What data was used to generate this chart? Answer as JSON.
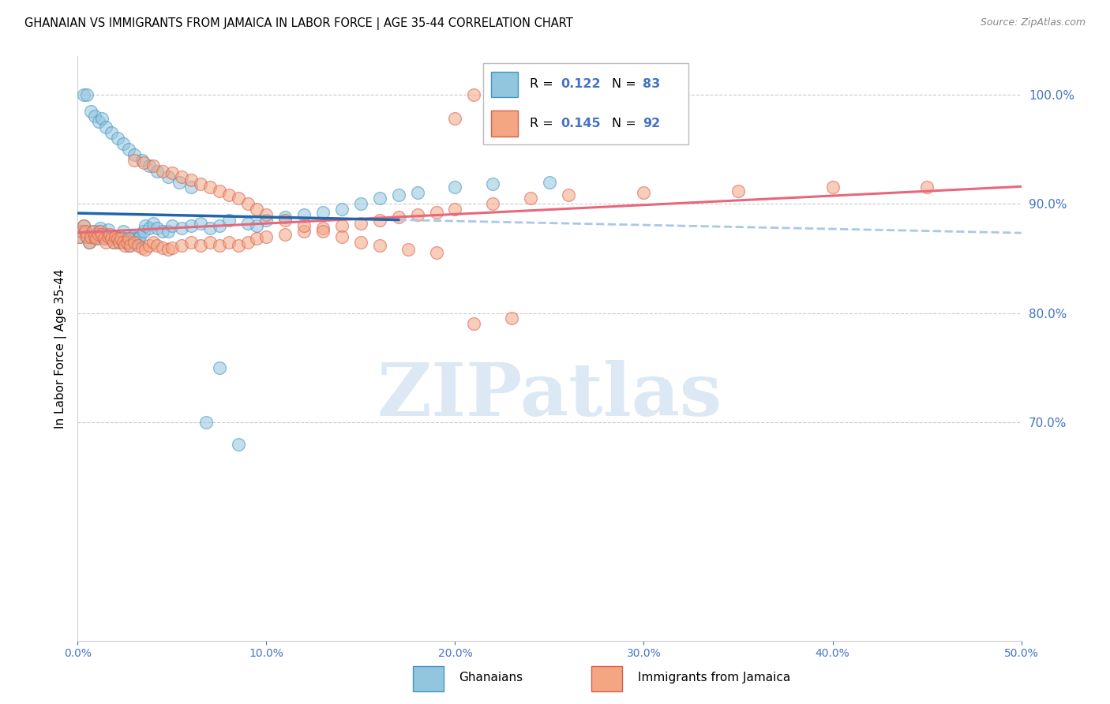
{
  "title": "GHANAIAN VS IMMIGRANTS FROM JAMAICA IN LABOR FORCE | AGE 35-44 CORRELATION CHART",
  "source": "Source: ZipAtlas.com",
  "ylabel": "In Labor Force | Age 35-44",
  "xlim": [
    0.0,
    0.5
  ],
  "ylim": [
    0.5,
    1.035
  ],
  "xtick_labels": [
    "0.0%",
    "10.0%",
    "20.0%",
    "30.0%",
    "40.0%",
    "50.0%"
  ],
  "ytick_labels_right": [
    "70.0%",
    "80.0%",
    "90.0%",
    "100.0%"
  ],
  "blue_fill": "#92c5de",
  "blue_edge": "#4393c3",
  "pink_fill": "#f4a582",
  "pink_edge": "#d6604d",
  "blue_trend_color": "#2166ac",
  "pink_trend_color": "#e8677a",
  "dashed_ext_color": "#a8c8e8",
  "tick_label_color": "#4472c4",
  "legend_label_blue": "Ghanaians",
  "legend_label_pink": "Immigrants from Jamaica",
  "watermark": "ZIPatlas",
  "watermark_color": "#dce9f5",
  "blue_scatter_x": [
    0.001,
    0.002,
    0.003,
    0.004,
    0.005,
    0.006,
    0.007,
    0.008,
    0.009,
    0.01,
    0.01,
    0.011,
    0.012,
    0.013,
    0.014,
    0.015,
    0.016,
    0.017,
    0.018,
    0.019,
    0.02,
    0.021,
    0.022,
    0.023,
    0.024,
    0.025,
    0.026,
    0.027,
    0.028,
    0.029,
    0.03,
    0.031,
    0.032,
    0.033,
    0.035,
    0.036,
    0.038,
    0.04,
    0.042,
    0.045,
    0.048,
    0.05,
    0.055,
    0.06,
    0.065,
    0.07,
    0.075,
    0.08,
    0.09,
    0.095,
    0.1,
    0.11,
    0.12,
    0.13,
    0.14,
    0.15,
    0.16,
    0.17,
    0.18,
    0.2,
    0.22,
    0.25,
    0.003,
    0.005,
    0.007,
    0.009,
    0.011,
    0.013,
    0.015,
    0.018,
    0.021,
    0.024,
    0.027,
    0.03,
    0.034,
    0.038,
    0.042,
    0.048,
    0.054,
    0.06,
    0.068,
    0.075,
    0.085
  ],
  "blue_scatter_y": [
    0.87,
    0.875,
    0.88,
    0.875,
    0.87,
    0.865,
    0.87,
    0.875,
    0.87,
    0.868,
    0.872,
    0.875,
    0.878,
    0.872,
    0.868,
    0.872,
    0.876,
    0.87,
    0.868,
    0.865,
    0.87,
    0.868,
    0.865,
    0.87,
    0.875,
    0.868,
    0.865,
    0.862,
    0.868,
    0.87,
    0.868,
    0.865,
    0.868,
    0.87,
    0.875,
    0.88,
    0.878,
    0.882,
    0.878,
    0.875,
    0.875,
    0.88,
    0.878,
    0.88,
    0.882,
    0.878,
    0.88,
    0.885,
    0.882,
    0.88,
    0.885,
    0.888,
    0.89,
    0.892,
    0.895,
    0.9,
    0.905,
    0.908,
    0.91,
    0.915,
    0.918,
    0.92,
    1.0,
    1.0,
    0.985,
    0.98,
    0.975,
    0.978,
    0.97,
    0.965,
    0.96,
    0.955,
    0.95,
    0.945,
    0.94,
    0.935,
    0.93,
    0.925,
    0.92,
    0.915,
    0.7,
    0.75,
    0.68
  ],
  "pink_scatter_x": [
    0.001,
    0.002,
    0.003,
    0.004,
    0.005,
    0.006,
    0.007,
    0.008,
    0.009,
    0.01,
    0.011,
    0.012,
    0.013,
    0.014,
    0.015,
    0.016,
    0.017,
    0.018,
    0.019,
    0.02,
    0.021,
    0.022,
    0.023,
    0.024,
    0.025,
    0.026,
    0.027,
    0.028,
    0.03,
    0.032,
    0.034,
    0.036,
    0.038,
    0.04,
    0.042,
    0.045,
    0.048,
    0.05,
    0.055,
    0.06,
    0.065,
    0.07,
    0.075,
    0.08,
    0.085,
    0.09,
    0.095,
    0.1,
    0.11,
    0.12,
    0.13,
    0.14,
    0.15,
    0.16,
    0.17,
    0.18,
    0.19,
    0.2,
    0.22,
    0.24,
    0.26,
    0.3,
    0.35,
    0.4,
    0.45,
    0.2,
    0.21,
    0.03,
    0.035,
    0.04,
    0.045,
    0.05,
    0.055,
    0.06,
    0.065,
    0.07,
    0.075,
    0.08,
    0.085,
    0.09,
    0.095,
    0.1,
    0.11,
    0.12,
    0.13,
    0.14,
    0.15,
    0.16,
    0.175,
    0.19,
    0.21,
    0.23
  ],
  "pink_scatter_y": [
    0.87,
    0.875,
    0.88,
    0.875,
    0.87,
    0.865,
    0.87,
    0.875,
    0.87,
    0.868,
    0.872,
    0.875,
    0.872,
    0.868,
    0.865,
    0.87,
    0.872,
    0.868,
    0.865,
    0.87,
    0.868,
    0.865,
    0.868,
    0.865,
    0.862,
    0.865,
    0.868,
    0.862,
    0.865,
    0.862,
    0.86,
    0.858,
    0.862,
    0.865,
    0.862,
    0.86,
    0.858,
    0.86,
    0.862,
    0.865,
    0.862,
    0.865,
    0.862,
    0.865,
    0.862,
    0.865,
    0.868,
    0.87,
    0.872,
    0.875,
    0.878,
    0.88,
    0.882,
    0.885,
    0.888,
    0.89,
    0.892,
    0.895,
    0.9,
    0.905,
    0.908,
    0.91,
    0.912,
    0.915,
    0.915,
    0.978,
    1.0,
    0.94,
    0.938,
    0.935,
    0.93,
    0.928,
    0.925,
    0.922,
    0.918,
    0.915,
    0.912,
    0.908,
    0.905,
    0.9,
    0.895,
    0.89,
    0.885,
    0.88,
    0.875,
    0.87,
    0.865,
    0.862,
    0.858,
    0.855,
    0.79,
    0.795
  ]
}
